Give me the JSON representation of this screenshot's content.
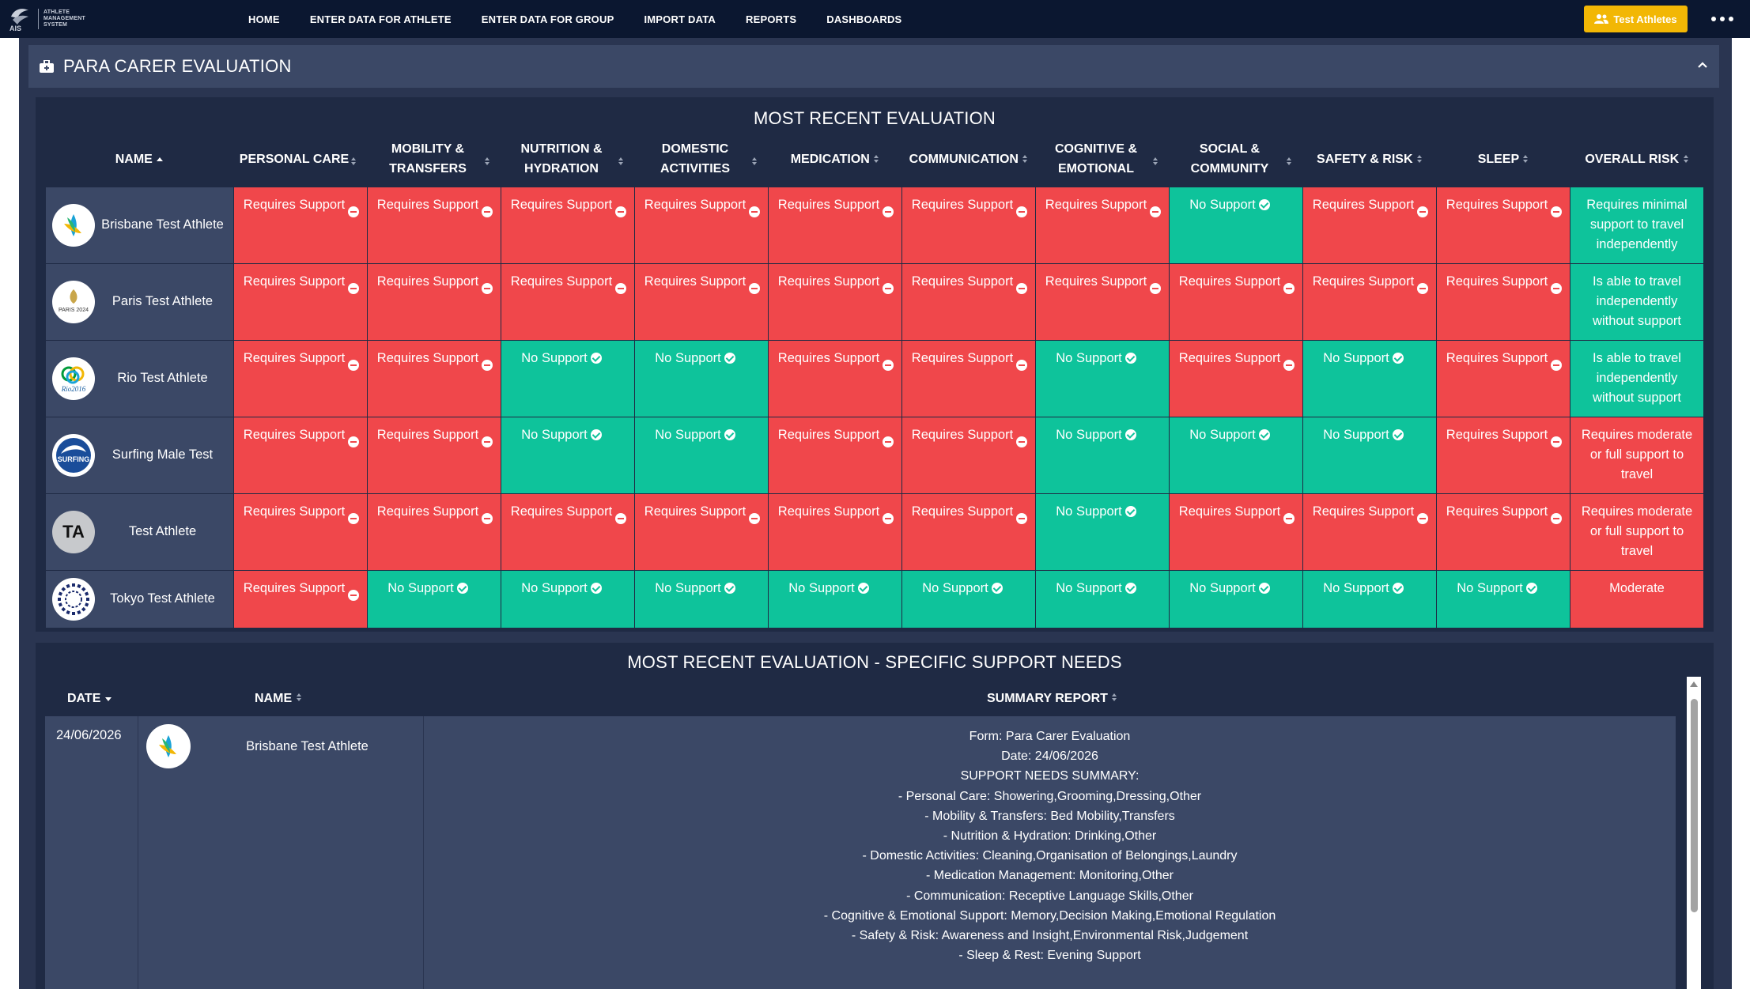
{
  "nav": {
    "logo_text": [
      "ATHLETE",
      "MANAGEMENT",
      "SYSTEM"
    ],
    "logo_short": "AIS",
    "items": [
      "HOME",
      "ENTER DATA FOR ATHLETE",
      "ENTER DATA FOR GROUP",
      "IMPORT DATA",
      "REPORTS",
      "DASHBOARDS"
    ],
    "test_button": "Test Athletes",
    "accent": "#f2b705"
  },
  "panel": {
    "title": "PARA CARER EVALUATION"
  },
  "evaluation": {
    "title": "MOST RECENT EVALUATION",
    "columns": [
      "NAME",
      "PERSONAL CARE",
      "MOBILITY & TRANSFERS",
      "NUTRITION & HYDRATION",
      "DOMESTIC ACTIVITIES",
      "MEDICATION",
      "COMMUNICATION",
      "COGNITIVE & EMOTIONAL",
      "SOCIAL & COMMUNITY",
      "SAFETY & RISK",
      "SLEEP",
      "OVERALL RISK"
    ],
    "colors": {
      "requires": "#f0474b",
      "no_support": "#0ec39b"
    },
    "rows": [
      {
        "name": "Brisbane Test Athlete",
        "logo": "brisbane-logo",
        "cells": [
          "Requires Support",
          "Requires Support",
          "Requires Support",
          "Requires Support",
          "Requires Support",
          "Requires Support",
          "Requires Support",
          "No Support",
          "Requires Support",
          "Requires Support"
        ],
        "overall": "Requires minimal support to travel independently",
        "overall_status": "green"
      },
      {
        "name": "Paris Test Athlete",
        "logo": "paris-logo",
        "cells": [
          "Requires Support",
          "Requires Support",
          "Requires Support",
          "Requires Support",
          "Requires Support",
          "Requires Support",
          "Requires Support",
          "Requires Support",
          "Requires Support",
          "Requires Support"
        ],
        "overall": "Is able to travel independently without support",
        "overall_status": "green"
      },
      {
        "name": "Rio Test Athlete",
        "logo": "rio-logo",
        "cells": [
          "Requires Support",
          "Requires Support",
          "No Support",
          "No Support",
          "Requires Support",
          "Requires Support",
          "No Support",
          "Requires Support",
          "No Support",
          "Requires Support"
        ],
        "overall": "Is able to travel independently without support",
        "overall_status": "green"
      },
      {
        "name": "Surfing Male Test",
        "logo": "surfing-logo",
        "cells": [
          "Requires Support",
          "Requires Support",
          "No Support",
          "No Support",
          "Requires Support",
          "Requires Support",
          "No Support",
          "No Support",
          "No Support",
          "Requires Support"
        ],
        "overall": "Requires moderate or full support to travel",
        "overall_status": "red"
      },
      {
        "name": "Test Athlete",
        "logo": "TA",
        "cells": [
          "Requires Support",
          "Requires Support",
          "Requires Support",
          "Requires Support",
          "Requires Support",
          "Requires Support",
          "No Support",
          "Requires Support",
          "Requires Support",
          "Requires Support"
        ],
        "overall": "Requires moderate or full support to travel",
        "overall_status": "red"
      },
      {
        "name": "Tokyo Test Athlete",
        "logo": "tokyo-logo",
        "cells": [
          "Requires Support",
          "No Support",
          "No Support",
          "No Support",
          "No Support",
          "No Support",
          "No Support",
          "No Support",
          "No Support",
          "No Support"
        ],
        "overall": "Moderate",
        "overall_status": "red"
      }
    ]
  },
  "support_needs": {
    "title": "MOST RECENT EVALUATION - SPECIFIC SUPPORT NEEDS",
    "columns": {
      "date": "DATE",
      "name": "NAME",
      "summary": "SUMMARY REPORT"
    },
    "row": {
      "date": "24/06/2026",
      "name": "Brisbane Test Athlete",
      "summary": [
        "Form: Para Carer Evaluation",
        "Date: 24/06/2026",
        "SUPPORT NEEDS SUMMARY:",
        "- Personal Care: Showering,Grooming,Dressing,Other",
        "- Mobility & Transfers: Bed Mobility,Transfers",
        "- Nutrition & Hydration: Drinking,Other",
        "- Domestic Activities: Cleaning,Organisation of Belongings,Laundry",
        "- Medication Management: Monitoring,Other",
        "- Communication: Receptive Language Skills,Other",
        "- Cognitive & Emotional Support: Memory,Decision Making,Emotional Regulation",
        "- Safety & Risk: Awareness and Insight,Environmental Risk,Judgement",
        "- Sleep & Rest: Evening Support"
      ]
    }
  }
}
